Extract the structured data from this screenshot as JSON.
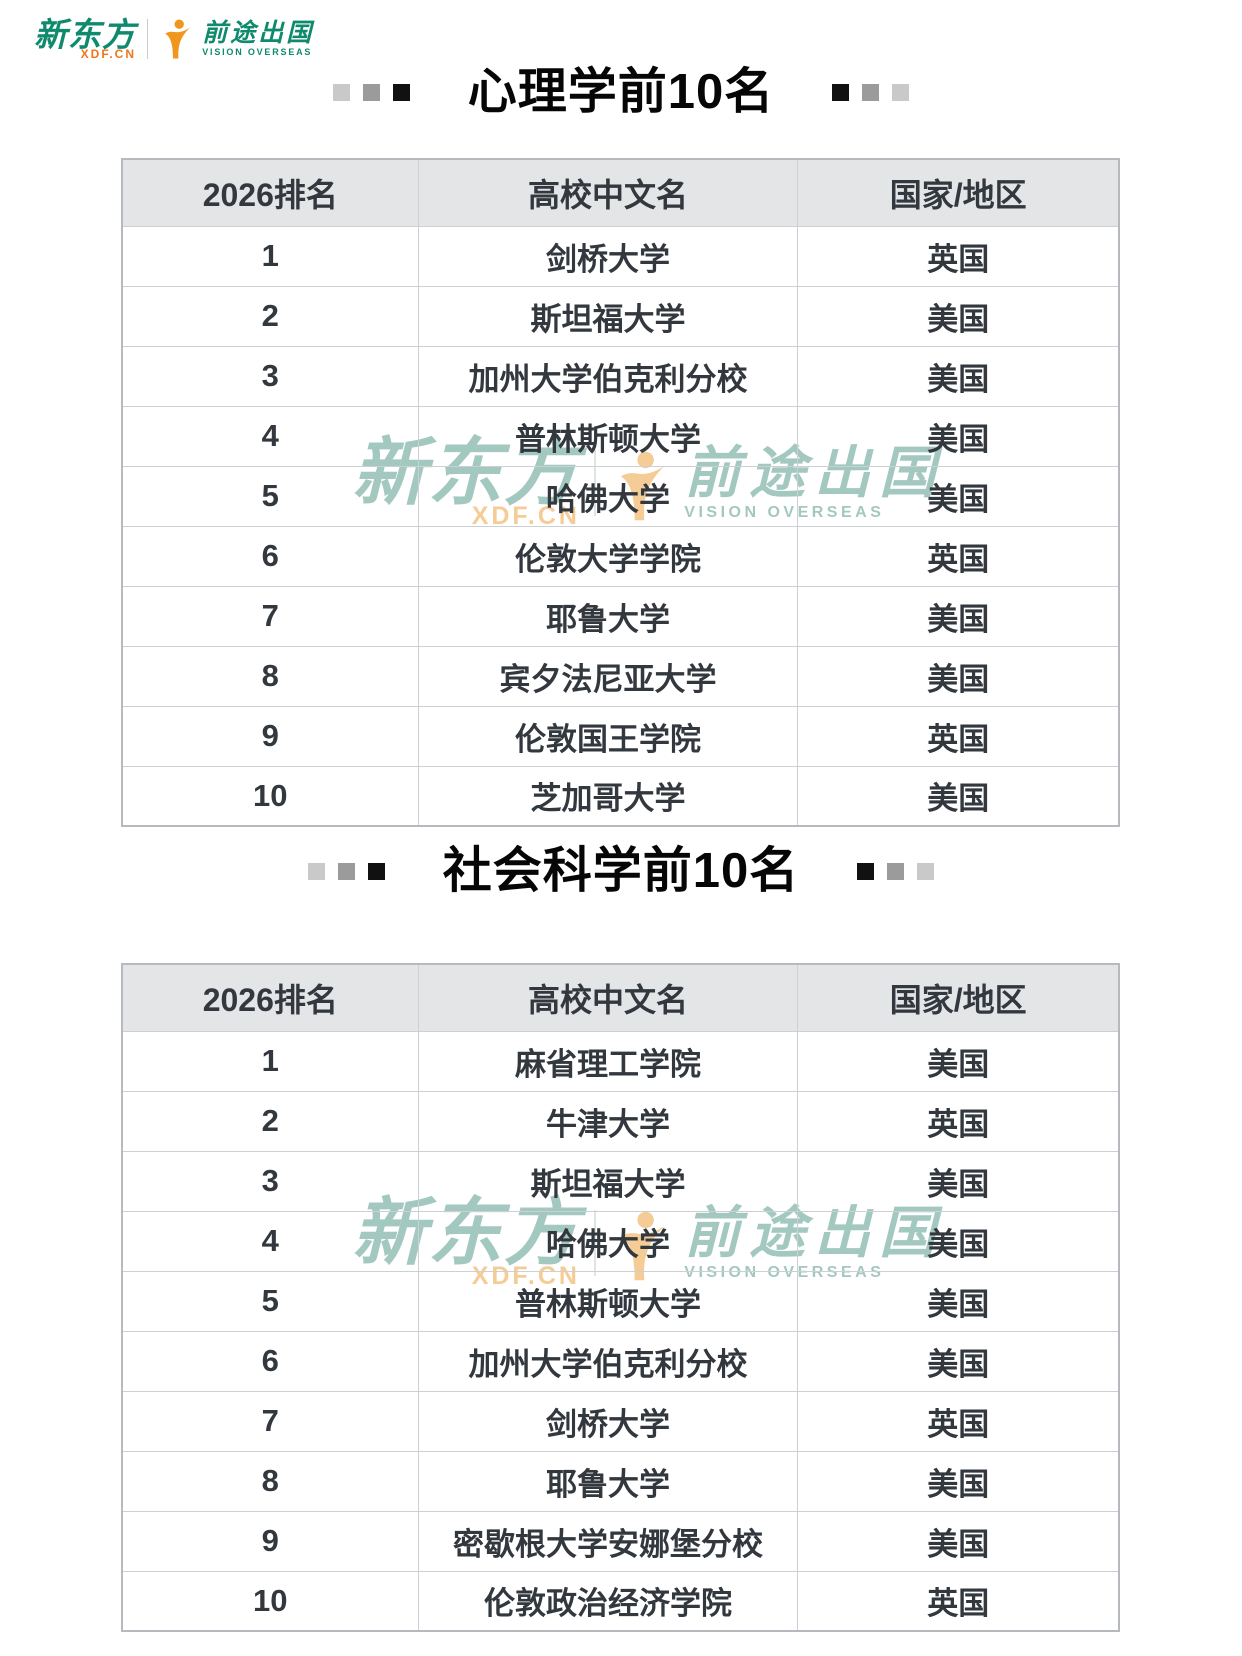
{
  "logo": {
    "brand_cn": "新东方",
    "brand_url": "XDF.CN",
    "sub_brand_cn": "前途出国",
    "sub_brand_en": "VISION OVERSEAS"
  },
  "colors": {
    "brand_green": "#0f8a6d",
    "brand_orange": "#f0751c",
    "header_bg": "#e4e5e7",
    "cell_text": "#32383e",
    "title_color": "#060606",
    "border_outer": "#b6babe",
    "border_inner": "#ccd0d4",
    "wm_teal": "#a3c8bf",
    "wm_orange": "#f5cc96",
    "square_dark": "#111111",
    "square_mid": "#9b9b9b",
    "square_light": "#c9c9c9"
  },
  "sections": [
    {
      "title": "心理学前10名",
      "columns": [
        "2026排名",
        "高校中文名",
        "国家/地区"
      ],
      "rows": [
        [
          "1",
          "剑桥大学",
          "英国"
        ],
        [
          "2",
          "斯坦福大学",
          "美国"
        ],
        [
          "3",
          "加州大学伯克利分校",
          "美国"
        ],
        [
          "4",
          "普林斯顿大学",
          "美国"
        ],
        [
          "5",
          "哈佛大学",
          "美国"
        ],
        [
          "6",
          "伦敦大学学院",
          "英国"
        ],
        [
          "7",
          "耶鲁大学",
          "美国"
        ],
        [
          "8",
          "宾夕法尼亚大学",
          "美国"
        ],
        [
          "9",
          "伦敦国王学院",
          "英国"
        ],
        [
          "10",
          "芝加哥大学",
          "美国"
        ]
      ]
    },
    {
      "title": "社会科学前10名",
      "columns": [
        "2026排名",
        "高校中文名",
        "国家/地区"
      ],
      "rows": [
        [
          "1",
          "麻省理工学院",
          "美国"
        ],
        [
          "2",
          "牛津大学",
          "英国"
        ],
        [
          "3",
          "斯坦福大学",
          "美国"
        ],
        [
          "4",
          "哈佛大学",
          "美国"
        ],
        [
          "5",
          "普林斯顿大学",
          "美国"
        ],
        [
          "6",
          "加州大学伯克利分校",
          "美国"
        ],
        [
          "7",
          "剑桥大学",
          "英国"
        ],
        [
          "8",
          "耶鲁大学",
          "美国"
        ],
        [
          "9",
          "密歇根大学安娜堡分校",
          "美国"
        ],
        [
          "10",
          "伦敦政治经济学院",
          "英国"
        ]
      ]
    }
  ]
}
